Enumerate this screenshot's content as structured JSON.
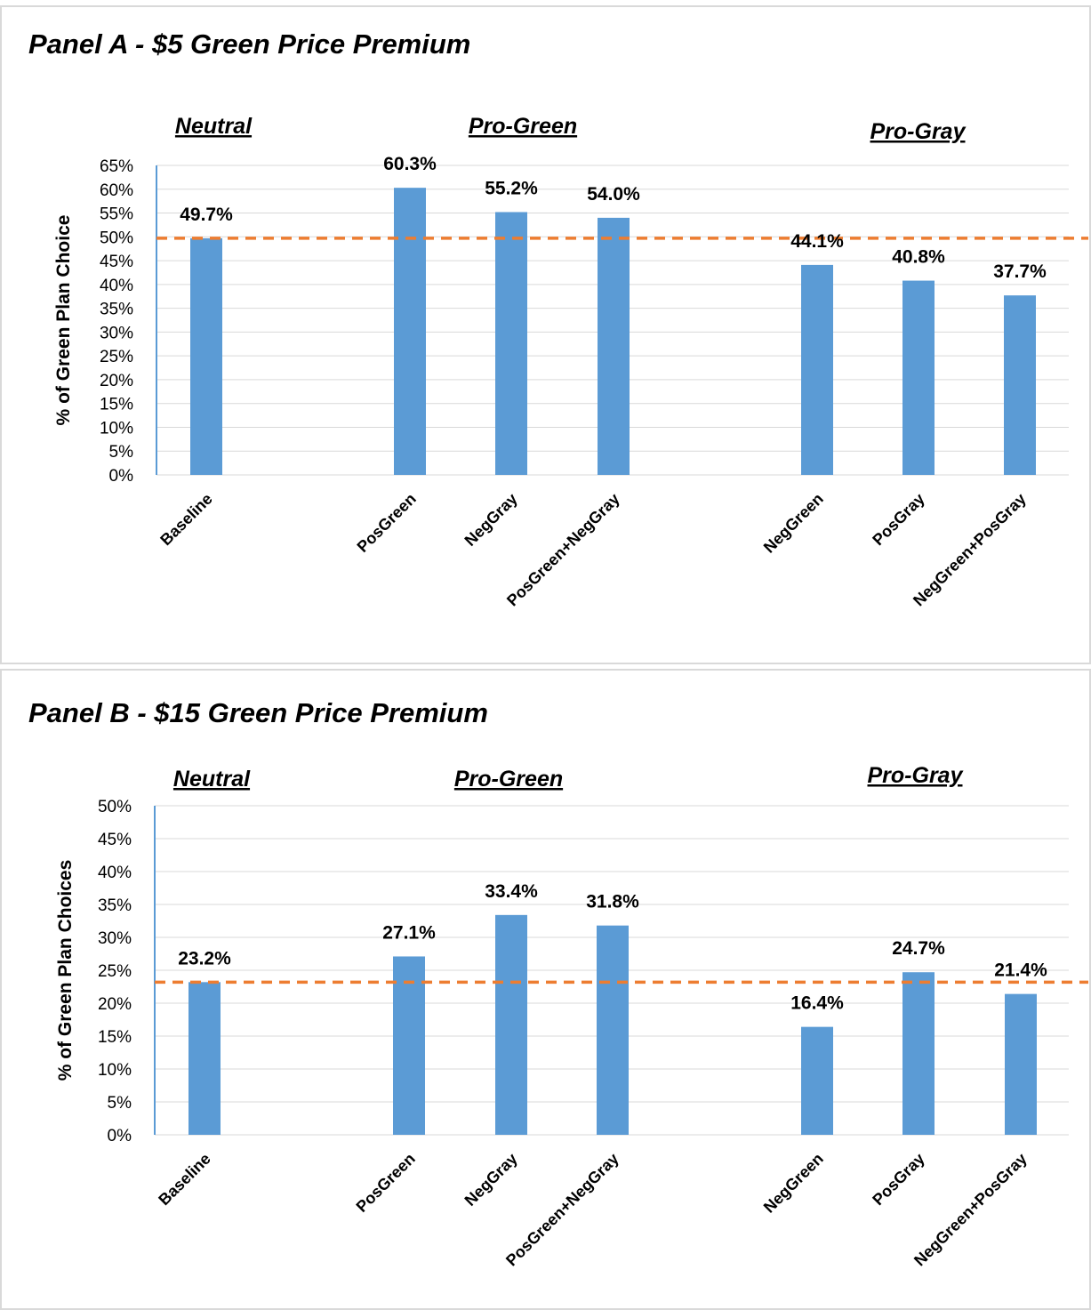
{
  "chart_data": [
    {
      "type": "bar",
      "title": "Panel A - $5 Green Price Premium",
      "ylabel": "% of Green Plan Choice",
      "ylim": [
        0,
        65
      ],
      "ytick_step": 5,
      "ytick_format": "percent",
      "grid": true,
      "groups": [
        "Neutral",
        "Pro-Green",
        "Pro-Gray"
      ],
      "categories": [
        "Baseline",
        "PosGreen",
        "NegGray",
        "PosGreen+NegGray",
        "NegGreen",
        "PosGray",
        "NegGreen+PosGray"
      ],
      "values": [
        49.7,
        60.3,
        55.2,
        54.0,
        44.1,
        40.8,
        37.7
      ],
      "data_labels": [
        "49.7%",
        "60.3%",
        "55.2%",
        "54.0%",
        "44.1%",
        "40.8%",
        "37.7%"
      ],
      "reference_line": 49.7,
      "bar_color": "#5b9bd5",
      "reference_color": "#ed7d31"
    },
    {
      "type": "bar",
      "title": "Panel B - $15 Green Price Premium",
      "ylabel": "% of Green Plan Choices",
      "ylim": [
        0,
        50
      ],
      "ytick_step": 5,
      "ytick_format": "percent",
      "grid": true,
      "groups": [
        "Neutral",
        "Pro-Green",
        "Pro-Gray"
      ],
      "categories": [
        "Baseline",
        "PosGreen",
        "NegGray",
        "PosGreen+NegGray",
        "NegGreen",
        "PosGray",
        "NegGreen+PosGray"
      ],
      "values": [
        23.2,
        27.1,
        33.4,
        31.8,
        16.4,
        24.7,
        21.4
      ],
      "data_labels": [
        "23.2%",
        "27.1%",
        "33.4%",
        "31.8%",
        "16.4%",
        "24.7%",
        "21.4%"
      ],
      "reference_line": 23.2,
      "bar_color": "#5b9bd5",
      "reference_color": "#ed7d31"
    }
  ]
}
